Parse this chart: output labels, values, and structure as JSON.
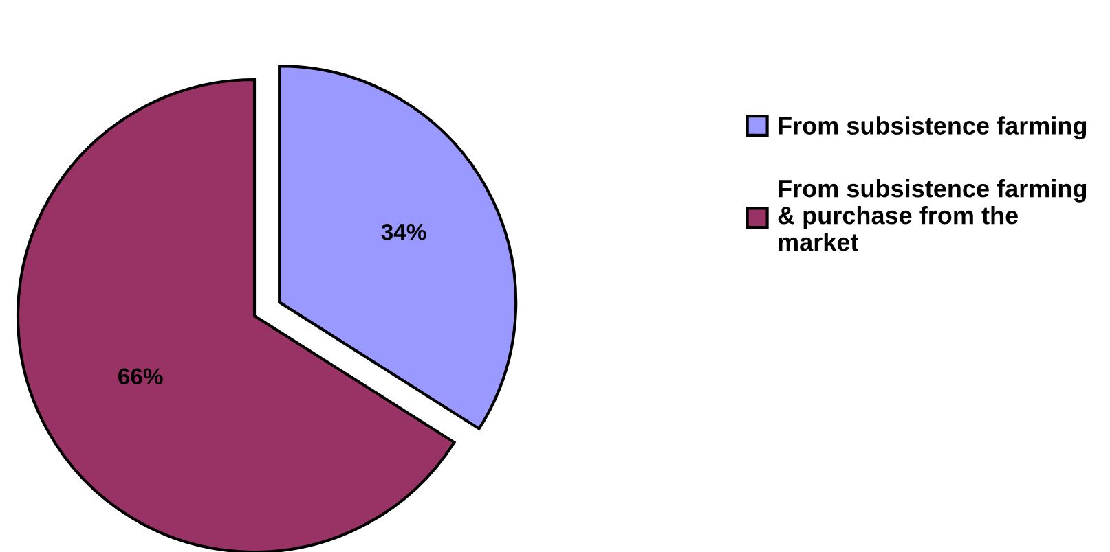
{
  "chart_data": {
    "type": "pie",
    "categories": [
      "From subsistence farming",
      "From subsistence farming & purchase from the market"
    ],
    "values": [
      34,
      66
    ],
    "colors": [
      "#9999ff",
      "#993366"
    ],
    "value_labels": [
      "34%",
      "66%"
    ],
    "legend": "right"
  }
}
